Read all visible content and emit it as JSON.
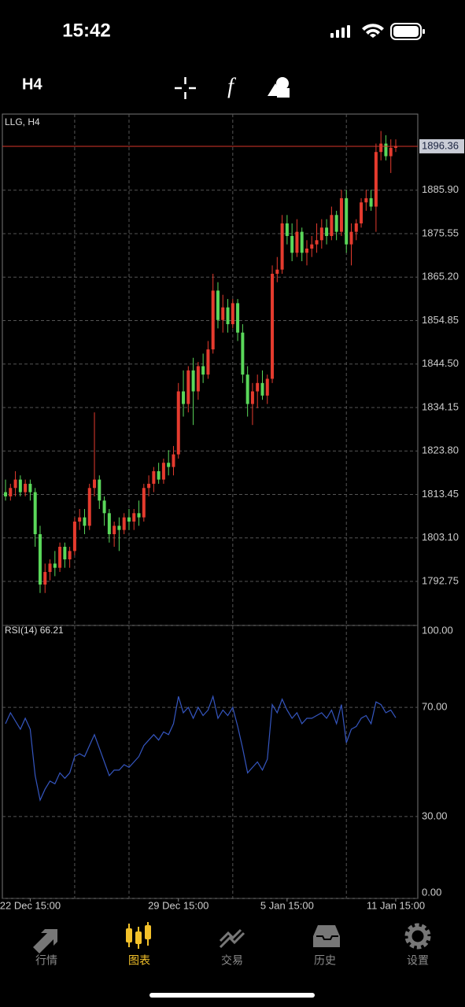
{
  "status_bar": {
    "time": "15:42"
  },
  "toolbar": {
    "timeframe": "H4"
  },
  "tabs": [
    {
      "label": "行情"
    },
    {
      "label": "图表"
    },
    {
      "label": "交易"
    },
    {
      "label": "历史"
    },
    {
      "label": "设置"
    }
  ],
  "chart_data": [
    {
      "type": "candlestick",
      "title": "LLG, H4",
      "up_color": "#e53b2e",
      "down_color": "#5ad85a",
      "price_line_color": "#d9362a",
      "open": [
        1814,
        1813,
        1815,
        1817,
        1814,
        1816,
        1814,
        1804,
        1792,
        1795,
        1797,
        1796,
        1801,
        1798,
        1800,
        1807,
        1808,
        1806,
        1815,
        1817,
        1812,
        1809,
        1804,
        1806,
        1805,
        1808,
        1807,
        1809,
        1808,
        1815,
        1816,
        1819,
        1817,
        1821,
        1820,
        1823,
        1838,
        1835,
        1843,
        1838,
        1844,
        1842,
        1848,
        1862,
        1855,
        1858,
        1854,
        1859,
        1852,
        1842,
        1835,
        1838,
        1840,
        1837,
        1841,
        1866,
        1867,
        1878,
        1875,
        1871,
        1876,
        1871,
        1872,
        1873,
        1874,
        1877,
        1875,
        1880,
        1876,
        1884,
        1873,
        1876,
        1878,
        1883,
        1884,
        1882,
        1895,
        1897,
        1894,
        1896
      ],
      "high": [
        1817,
        1816,
        1819,
        1818,
        1817,
        1817,
        1815,
        1806,
        1797,
        1798,
        1800,
        1802,
        1802,
        1801,
        1808,
        1810,
        1810,
        1816,
        1833,
        1818,
        1813,
        1810,
        1807,
        1808,
        1809,
        1810,
        1810,
        1812,
        1816,
        1818,
        1820,
        1821,
        1822,
        1824,
        1825,
        1840,
        1843,
        1844,
        1846,
        1845,
        1847,
        1850,
        1866,
        1864,
        1861,
        1860,
        1860,
        1860,
        1854,
        1844,
        1840,
        1842,
        1843,
        1842,
        1868,
        1870,
        1880,
        1880,
        1878,
        1879,
        1877,
        1874,
        1875,
        1878,
        1879,
        1879,
        1882,
        1881,
        1886,
        1886,
        1878,
        1879,
        1884,
        1886,
        1886,
        1897,
        1900,
        1899,
        1898,
        1898
      ],
      "low": [
        1812,
        1812,
        1813,
        1813,
        1813,
        1812,
        1801,
        1790,
        1790,
        1793,
        1794,
        1795,
        1796,
        1796,
        1799,
        1805,
        1804,
        1805,
        1813,
        1810,
        1806,
        1802,
        1801,
        1800,
        1804,
        1805,
        1805,
        1806,
        1807,
        1813,
        1814,
        1816,
        1816,
        1818,
        1818,
        1822,
        1832,
        1833,
        1830,
        1836,
        1840,
        1841,
        1847,
        1853,
        1852,
        1852,
        1853,
        1850,
        1840,
        1832,
        1830,
        1834,
        1836,
        1835,
        1840,
        1864,
        1866,
        1873,
        1869,
        1870,
        1869,
        1868,
        1870,
        1871,
        1872,
        1873,
        1874,
        1874,
        1875,
        1871,
        1868,
        1874,
        1877,
        1881,
        1881,
        1876,
        1893,
        1893,
        1890,
        1895
      ],
      "close": [
        1813,
        1815,
        1817,
        1814,
        1816,
        1814,
        1804,
        1792,
        1795,
        1797,
        1796,
        1801,
        1798,
        1800,
        1807,
        1808,
        1806,
        1815,
        1817,
        1812,
        1809,
        1804,
        1806,
        1805,
        1808,
        1807,
        1809,
        1808,
        1815,
        1816,
        1819,
        1817,
        1821,
        1820,
        1823,
        1838,
        1835,
        1843,
        1838,
        1844,
        1842,
        1848,
        1862,
        1855,
        1858,
        1854,
        1859,
        1852,
        1842,
        1835,
        1838,
        1840,
        1837,
        1841,
        1866,
        1867,
        1878,
        1875,
        1871,
        1876,
        1871,
        1872,
        1873,
        1874,
        1877,
        1875,
        1880,
        1876,
        1884,
        1873,
        1876,
        1878,
        1883,
        1884,
        1882,
        1895,
        1897,
        1894,
        1896,
        1896.36
      ],
      "ylim": [
        1782.27,
        1904.03
      ],
      "yticks": [
        {
          "value": 1885.9,
          "label": "1885.90"
        },
        1875.55,
        {
          "value": 1865.2,
          "label": "1865.20"
        },
        1854.85,
        {
          "value": 1844.5,
          "label": "1844.50"
        },
        1834.15,
        {
          "value": 1823.8,
          "label": "1823.80"
        },
        1813.45,
        {
          "value": 1803.1,
          "label": "1803.10"
        },
        1792.75
      ],
      "xlim": [
        -0.64,
        83.46
      ],
      "xgrid": [
        14,
        25,
        46,
        69
      ]
    },
    {
      "type": "line",
      "title": "RSI(14)",
      "color": "#3556c0",
      "values": [
        64,
        68,
        65,
        62,
        66,
        62,
        45,
        36,
        40,
        43,
        42,
        46,
        44,
        46,
        52,
        53,
        52,
        56,
        60,
        55,
        50,
        45,
        47,
        47,
        49,
        48,
        50,
        52,
        56,
        58,
        60,
        58,
        61,
        60,
        64,
        74,
        68,
        70,
        66,
        70,
        67,
        69,
        74,
        66,
        69,
        67,
        70,
        63,
        55,
        46,
        48,
        50,
        47,
        51,
        71,
        68,
        73,
        69,
        66,
        68,
        64,
        66,
        66,
        67,
        68,
        66,
        69,
        64,
        71,
        57,
        62,
        63,
        66,
        67,
        64,
        72,
        71,
        68,
        69,
        66.21
      ],
      "ylim": [
        0,
        100
      ],
      "yticks": [
        {
          "value": 100,
          "label": "100.00"
        },
        {
          "value": 70,
          "label": "70.00"
        },
        {
          "value": 30,
          "label": "30.00"
        },
        {
          "value": 0,
          "label": "0.00"
        }
      ],
      "xlim": [
        -0.64,
        83.46
      ],
      "xticks": [
        {
          "value": 5,
          "label": "22 Dec 15:00"
        },
        {
          "value": 35,
          "label": "29 Dec 15:00"
        },
        {
          "value": 57,
          "label": "5 Jan 15:00"
        },
        {
          "value": 79,
          "label": "11 Jan 15:00"
        }
      ]
    }
  ]
}
